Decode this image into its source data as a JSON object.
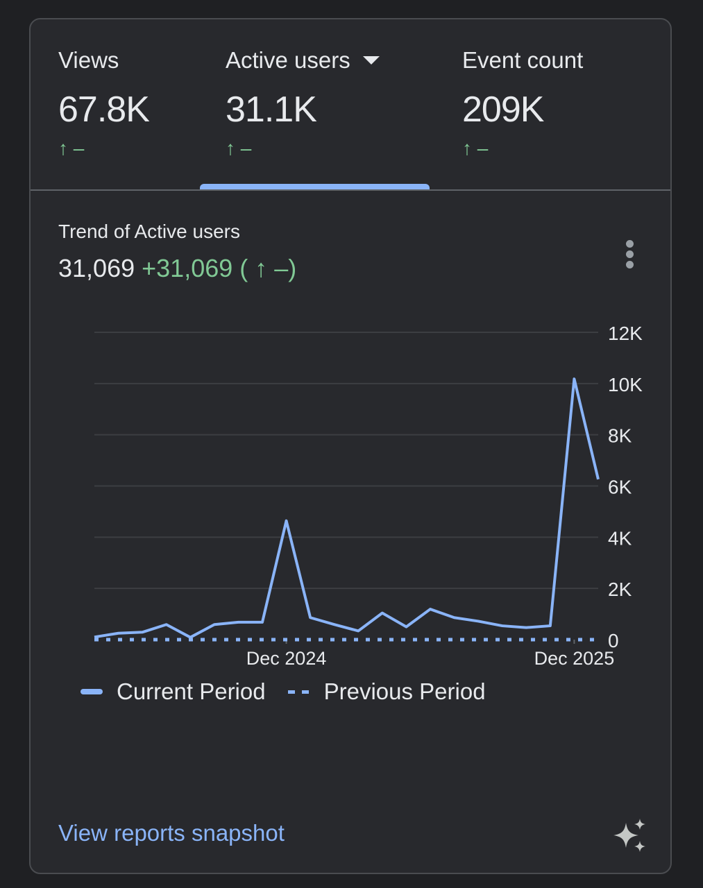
{
  "metrics": [
    {
      "label": "Views",
      "value": "67.8K",
      "change": "↑ –"
    },
    {
      "label": "Active users",
      "value": "31.1K",
      "change": "↑ –",
      "selected": true,
      "has_dropdown": true
    },
    {
      "label": "Event count",
      "value": "209K",
      "change": "↑ –"
    }
  ],
  "trend": {
    "title": "Trend of Active users",
    "total": "31,069",
    "delta": "+31,069",
    "delta_change": "( ↑ –)"
  },
  "link": "View reports snapshot",
  "colors": {
    "accent": "#8ab4f8",
    "positive": "#81c995",
    "background": "#28292d"
  },
  "icons": {
    "menu": "more-vert-icon",
    "ai": "sparkle-icon",
    "dropdown": "caret-down-icon"
  },
  "chart_data": {
    "type": "line",
    "ylim": [
      0,
      12000
    ],
    "y_ticks": [
      "0",
      "2K",
      "4K",
      "6K",
      "8K",
      "10K",
      "12K"
    ],
    "y_tick_values": [
      0,
      2000,
      4000,
      6000,
      8000,
      10000,
      12000
    ],
    "x_ticks": [
      {
        "index": 8,
        "label": "Dec 2024"
      },
      {
        "index": 20,
        "label": "Dec 2025"
      }
    ],
    "grid": true,
    "legend_position": "bottom-left",
    "series": [
      {
        "name": "Current Period",
        "style": "solid",
        "values": [
          100,
          250,
          290,
          590,
          90,
          590,
          680,
          680,
          4640,
          860,
          590,
          340,
          1040,
          500,
          1190,
          860,
          720,
          540,
          470,
          540,
          10180,
          6260
        ]
      },
      {
        "name": "Previous Period",
        "style": "dashed",
        "values": [
          0,
          0,
          0,
          0,
          0,
          0,
          0,
          0,
          0,
          0,
          0,
          0,
          0,
          0,
          0,
          0,
          0,
          0,
          0,
          0,
          0,
          0
        ]
      }
    ]
  }
}
